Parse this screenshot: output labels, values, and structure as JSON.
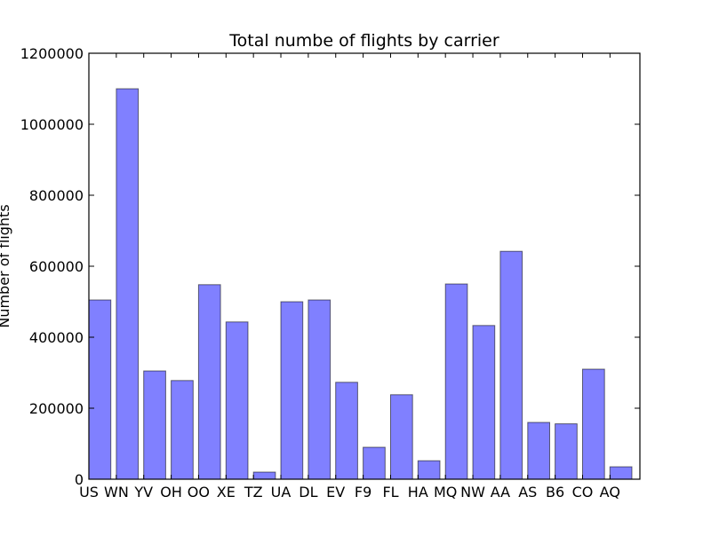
{
  "chart_data": {
    "type": "bar",
    "title": "Total numbe of flights by carrier",
    "xlabel": "",
    "ylabel": "Number of flights",
    "categories": [
      "US",
      "WN",
      "YV",
      "OH",
      "OO",
      "XE",
      "TZ",
      "UA",
      "DL",
      "EV",
      "F9",
      "FL",
      "HA",
      "MQ",
      "NW",
      "AA",
      "AS",
      "B6",
      "CO",
      "AQ"
    ],
    "values": [
      505000,
      1100000,
      305000,
      278000,
      548000,
      443000,
      20000,
      500000,
      505000,
      273000,
      90000,
      238000,
      52000,
      550000,
      433000,
      642000,
      160000,
      156000,
      310000,
      35000
    ],
    "ylim": [
      0,
      1200000
    ],
    "yticks": [
      0,
      200000,
      400000,
      600000,
      800000,
      1000000,
      1200000
    ],
    "ytick_labels": [
      "0",
      "200000",
      "400000",
      "600000",
      "800000",
      "1000000",
      "1200000"
    ],
    "grid": false,
    "colors": {
      "bar": "#8080ff",
      "edge": "#000000"
    }
  }
}
